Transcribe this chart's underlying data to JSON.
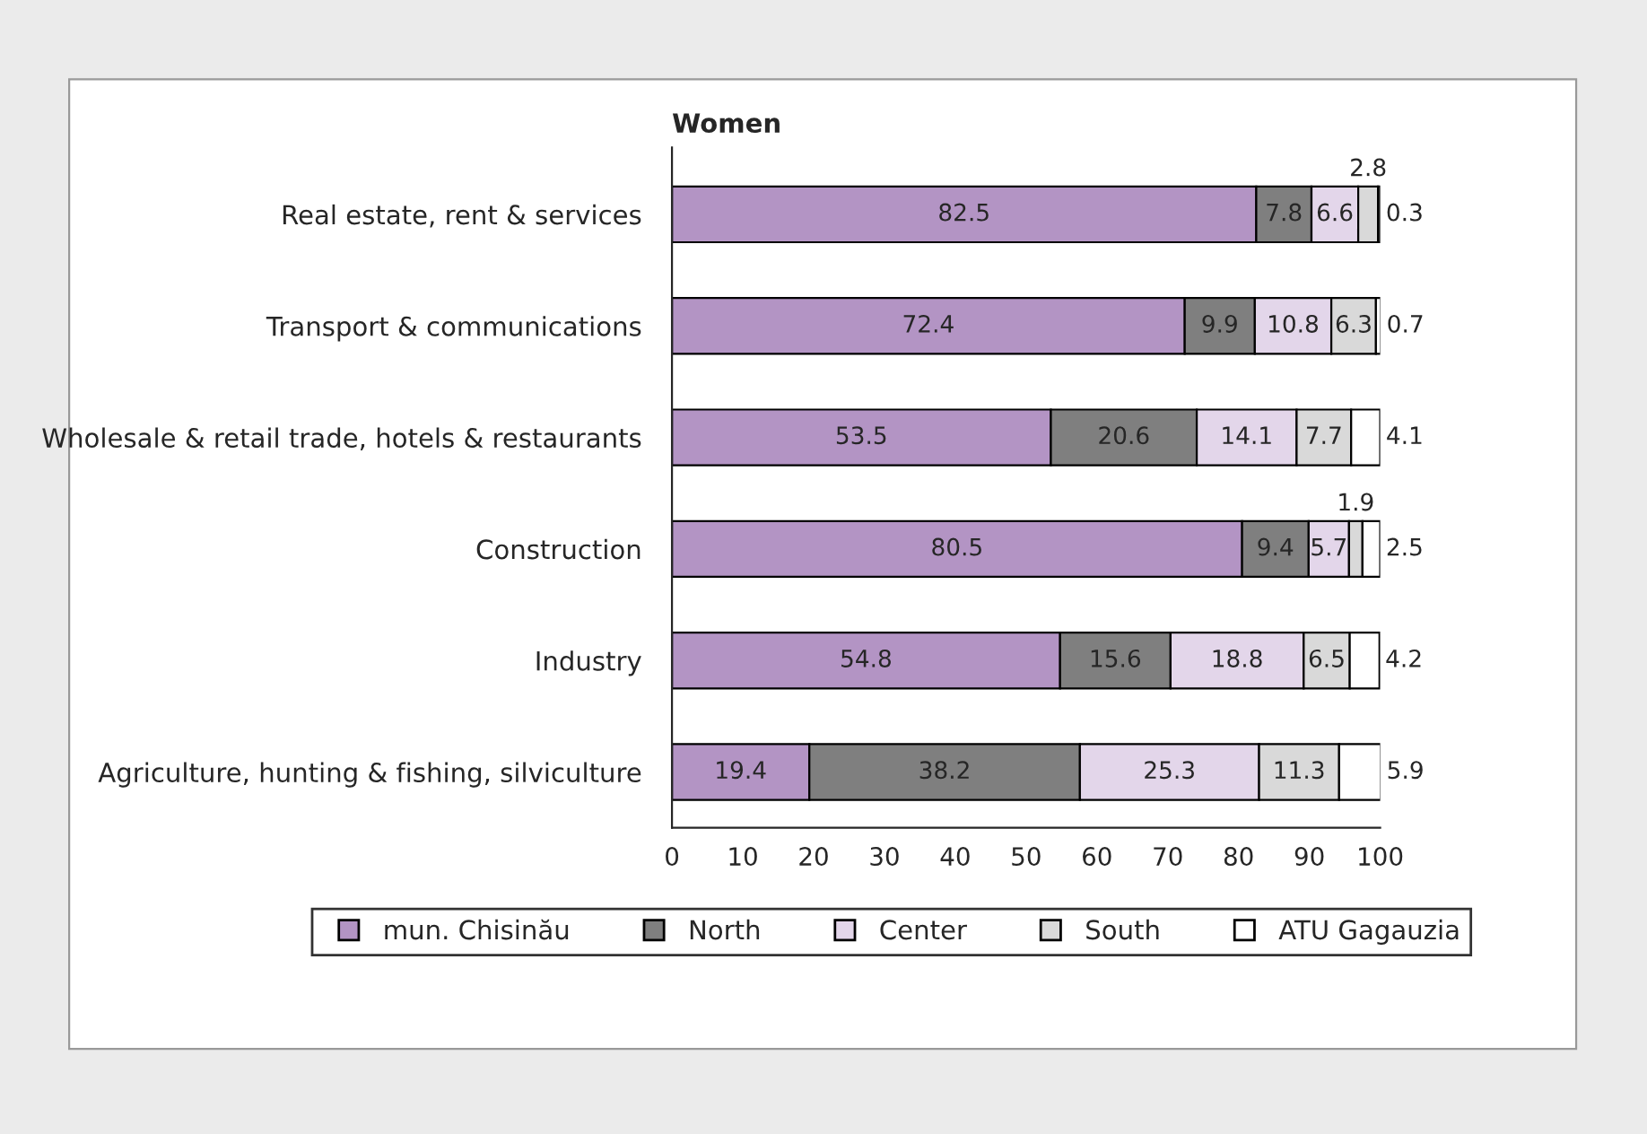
{
  "chart_data": {
    "type": "bar",
    "orientation": "horizontal",
    "stacked": true,
    "title": "Women",
    "categories": [
      "Real estate, rent & services",
      "Transport & communications",
      "Wholesale & retail trade, hotels & restaurants",
      "Construction",
      "Industry",
      "Agriculture, hunting & fishing, silviculture"
    ],
    "series": [
      {
        "name": "mun. Chisinău",
        "color": "#b394c4",
        "values": [
          82.5,
          72.4,
          53.5,
          80.5,
          54.8,
          19.4
        ]
      },
      {
        "name": "North",
        "color": "#7f7f7f",
        "values": [
          7.8,
          9.9,
          20.6,
          9.4,
          15.6,
          38.2
        ]
      },
      {
        "name": "Center",
        "color": "#e3d6ea",
        "values": [
          6.6,
          10.8,
          14.1,
          5.7,
          18.8,
          25.3
        ]
      },
      {
        "name": "South",
        "color": "#d9d9d9",
        "values": [
          2.8,
          6.3,
          7.7,
          1.9,
          6.5,
          11.3
        ]
      },
      {
        "name": "ATU Gagauzia",
        "color": "#ffffff",
        "values": [
          0.3,
          0.7,
          4.1,
          2.5,
          4.2,
          5.9
        ]
      }
    ],
    "xlim": [
      0,
      100
    ],
    "xticks": [
      0,
      10,
      20,
      30,
      40,
      50,
      60,
      70,
      80,
      90,
      100
    ],
    "data_labels": true,
    "grid": false,
    "legend": "bottom"
  }
}
